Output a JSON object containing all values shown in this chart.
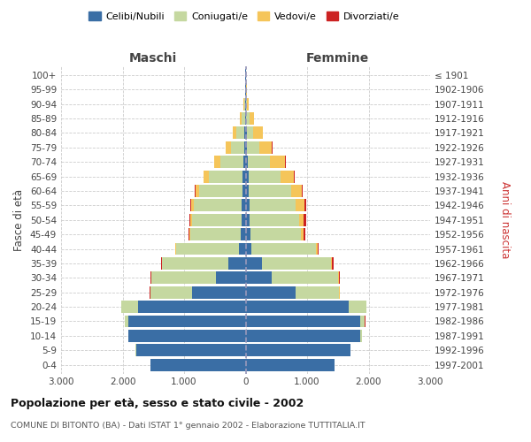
{
  "age_groups": [
    "0-4",
    "5-9",
    "10-14",
    "15-19",
    "20-24",
    "25-29",
    "30-34",
    "35-39",
    "40-44",
    "45-49",
    "50-54",
    "55-59",
    "60-64",
    "65-69",
    "70-74",
    "75-79",
    "80-84",
    "85-89",
    "90-94",
    "95-99",
    "100+"
  ],
  "birth_years": [
    "1997-2001",
    "1992-1996",
    "1987-1991",
    "1982-1986",
    "1977-1981",
    "1972-1976",
    "1967-1971",
    "1962-1966",
    "1957-1961",
    "1952-1956",
    "1947-1951",
    "1942-1946",
    "1937-1941",
    "1932-1936",
    "1927-1931",
    "1922-1926",
    "1917-1921",
    "1912-1916",
    "1907-1911",
    "1902-1906",
    "≤ 1901"
  ],
  "maschi": {
    "celibe": [
      1550,
      1780,
      1900,
      1900,
      1750,
      870,
      480,
      280,
      110,
      80,
      70,
      60,
      55,
      50,
      35,
      20,
      15,
      8,
      5,
      2,
      2
    ],
    "coniugato": [
      2,
      5,
      10,
      60,
      270,
      680,
      1050,
      1080,
      1020,
      820,
      800,
      780,
      700,
      550,
      380,
      220,
      130,
      60,
      20,
      5,
      3
    ],
    "vedovo": [
      0,
      0,
      0,
      1,
      2,
      3,
      5,
      5,
      10,
      15,
      25,
      40,
      60,
      80,
      90,
      80,
      60,
      30,
      10,
      3,
      1
    ],
    "divorziato": [
      0,
      0,
      0,
      1,
      2,
      5,
      8,
      10,
      10,
      18,
      20,
      20,
      15,
      8,
      5,
      3,
      2,
      1,
      0,
      0,
      0
    ]
  },
  "femmine": {
    "nubile": [
      1450,
      1700,
      1870,
      1870,
      1680,
      820,
      420,
      270,
      100,
      75,
      65,
      60,
      55,
      45,
      30,
      20,
      15,
      10,
      5,
      2,
      2
    ],
    "coniugata": [
      2,
      5,
      15,
      70,
      280,
      700,
      1080,
      1120,
      1040,
      820,
      800,
      760,
      680,
      520,
      360,
      200,
      110,
      50,
      15,
      5,
      2
    ],
    "vedova": [
      0,
      0,
      1,
      2,
      5,
      8,
      12,
      20,
      30,
      50,
      80,
      130,
      180,
      220,
      250,
      210,
      150,
      80,
      30,
      8,
      3
    ],
    "divorziata": [
      0,
      0,
      0,
      1,
      3,
      8,
      15,
      20,
      20,
      30,
      35,
      30,
      20,
      12,
      8,
      5,
      2,
      1,
      0,
      0,
      0
    ]
  },
  "colors": {
    "celibe": "#3A6EA5",
    "coniugato": "#C5D8A0",
    "vedovo": "#F5C55A",
    "divorziato": "#CC2222"
  },
  "xlim": 3000,
  "xtick_positions": [
    -3000,
    -2000,
    -1000,
    0,
    1000,
    2000,
    3000
  ],
  "xtick_labels": [
    "3.000",
    "2.000",
    "1.000",
    "0",
    "1.000",
    "2.000",
    "3.000"
  ],
  "title": "Popolazione per età, sesso e stato civile - 2002",
  "subtitle": "COMUNE DI BITONTO (BA) - Dati ISTAT 1° gennaio 2002 - Elaborazione TUTTITALIA.IT",
  "ylabel_left": "Fasce di età",
  "ylabel_right": "Anni di nascita",
  "maschi_label": "Maschi",
  "femmine_label": "Femmine",
  "legend_labels": [
    "Celibi/Nubili",
    "Coniugati/e",
    "Vedovi/e",
    "Divorziati/e"
  ],
  "bg_color": "#ffffff",
  "grid_color": "#cccccc",
  "center_line_color": "#9999bb"
}
